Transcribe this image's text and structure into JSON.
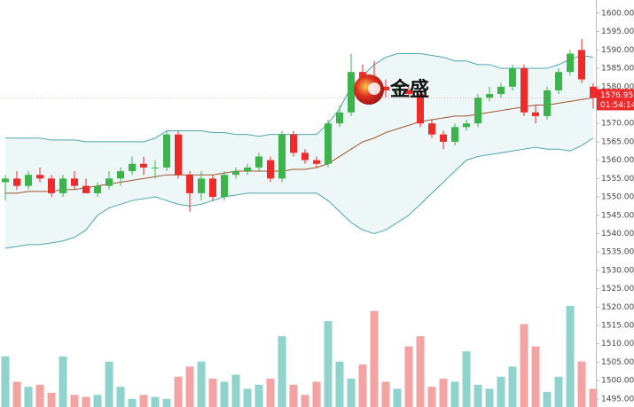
{
  "chart_data": {
    "type": "candlestick",
    "open": [
      1554,
      1555,
      1553,
      1556,
      1555,
      1551,
      1555,
      1553,
      1551,
      1553,
      1555,
      1557,
      1559,
      1558,
      1558,
      1567,
      1556,
      1551,
      1555,
      1550,
      1556,
      1557,
      1558,
      1560,
      1555,
      1567,
      1562,
      1560,
      1559,
      1570,
      1573,
      1584,
      1581,
      1580,
      1579,
      1579,
      1578,
      1570,
      1567,
      1565,
      1569,
      1570,
      1577,
      1578,
      1580,
      1585,
      1573,
      1572,
      1579,
      1584,
      1590,
      1580
    ],
    "high": [
      1556,
      1557,
      1557,
      1558,
      1556,
      1556,
      1557,
      1555,
      1554,
      1557,
      1558,
      1561,
      1561,
      1560,
      1568,
      1568,
      1557,
      1557,
      1556,
      1557,
      1558,
      1559,
      1562,
      1561,
      1568,
      1568,
      1563,
      1561,
      1571,
      1575,
      1589,
      1586,
      1587,
      1582,
      1581,
      1580,
      1579,
      1571,
      1568,
      1570,
      1571,
      1578,
      1580,
      1581,
      1586,
      1586,
      1575,
      1580,
      1585,
      1590,
      1593,
      1581
    ],
    "low": [
      1549,
      1552,
      1552,
      1554,
      1550,
      1550,
      1552,
      1551,
      1550,
      1552,
      1553,
      1556,
      1556,
      1555,
      1557,
      1555,
      1546,
      1549,
      1549,
      1549,
      1555,
      1556,
      1557,
      1554,
      1554,
      1561,
      1559,
      1558,
      1558,
      1569,
      1572,
      1580,
      1579,
      1577,
      1578,
      1577,
      1569,
      1566,
      1563,
      1564,
      1568,
      1569,
      1576,
      1577,
      1579,
      1572,
      1570,
      1571,
      1578,
      1583,
      1581,
      1574
    ],
    "close": [
      1555,
      1553,
      1556,
      1555,
      1551,
      1555,
      1553,
      1551,
      1553,
      1555,
      1557,
      1559,
      1558,
      1558,
      1567,
      1556,
      1551,
      1555,
      1550,
      1556,
      1557,
      1558,
      1561,
      1555,
      1567,
      1562,
      1560,
      1559,
      1570,
      1573,
      1584,
      1581,
      1580,
      1579,
      1579.5,
      1578,
      1570,
      1567,
      1565,
      1569,
      1570,
      1577,
      1578,
      1580,
      1585,
      1573,
      1572,
      1579,
      1584,
      1589,
      1582,
      1576.95
    ],
    "volume": [
      50,
      25,
      20,
      22,
      14,
      50,
      12,
      10,
      12,
      45,
      20,
      8,
      12,
      10,
      8,
      30,
      40,
      45,
      28,
      25,
      32,
      18,
      22,
      28,
      70,
      22,
      12,
      25,
      85,
      45,
      28,
      42,
      95,
      25,
      18,
      60,
      70,
      20,
      28,
      25,
      55,
      22,
      18,
      30,
      40,
      82,
      60,
      15,
      30,
      100,
      45,
      18
    ],
    "bands": {
      "upper": [
        1566,
        1566,
        1566,
        1566,
        1565.5,
        1565.5,
        1565.5,
        1565,
        1565,
        1565,
        1565,
        1565,
        1565,
        1566,
        1568,
        1568,
        1568,
        1568,
        1567.5,
        1567.5,
        1567,
        1567,
        1566.5,
        1567,
        1567,
        1567,
        1567,
        1567,
        1570,
        1574,
        1580,
        1583,
        1586,
        1588,
        1589,
        1589,
        1589,
        1588.5,
        1588,
        1587,
        1587,
        1586,
        1586,
        1585,
        1585,
        1585,
        1585,
        1585,
        1586,
        1587.5,
        1588.5,
        1588
      ],
      "middle": [
        1551,
        1551,
        1551.5,
        1551.5,
        1551.5,
        1552,
        1552,
        1552.5,
        1553,
        1553.5,
        1554,
        1554.5,
        1555,
        1555.5,
        1556,
        1556,
        1556,
        1556,
        1556,
        1556.5,
        1557,
        1557,
        1557,
        1557,
        1557,
        1557.5,
        1557.5,
        1558,
        1559,
        1561,
        1563,
        1565,
        1566,
        1567.5,
        1568.5,
        1569.5,
        1570.5,
        1571,
        1571.5,
        1572,
        1572,
        1572.5,
        1573,
        1573.5,
        1574,
        1574.5,
        1575,
        1575,
        1575.5,
        1576,
        1576.5,
        1577
      ],
      "lower": [
        1536,
        1536.5,
        1537,
        1537,
        1537.5,
        1538,
        1539,
        1541,
        1545,
        1547,
        1548,
        1549,
        1549.5,
        1550,
        1549,
        1548,
        1547.5,
        1548,
        1549,
        1550,
        1550.5,
        1551,
        1551,
        1551,
        1551,
        1551,
        1551,
        1551,
        1549,
        1546,
        1543,
        1541,
        1540,
        1541,
        1543,
        1545,
        1548,
        1551,
        1554,
        1557,
        1560,
        1561,
        1561.5,
        1562,
        1562.5,
        1563,
        1563.5,
        1563,
        1563,
        1562.5,
        1564,
        1566
      ]
    },
    "up_color": "#3cb44b",
    "down_color": "#ee2a2a",
    "up_volume_color": "#8fd3cc",
    "down_volume_color": "#f4a3a3",
    "band_color": "#4ea6b0",
    "middle_color": "#a0522d",
    "band_fill": "#eef7f7",
    "ylim": [
      1492.8,
      1603.6
    ],
    "yticks": [
      {
        "value": 1495,
        "label": "1495.00"
      },
      {
        "value": 1500,
        "label": "1500.00"
      },
      {
        "value": 1505,
        "label": "1505.00"
      },
      {
        "value": 1510,
        "label": "1510.00"
      },
      {
        "value": 1515,
        "label": "1515.00"
      },
      {
        "value": 1520,
        "label": "1520.00"
      },
      {
        "value": 1525,
        "label": "1525.00"
      },
      {
        "value": 1530,
        "label": "1530.00"
      },
      {
        "value": 1535,
        "label": "1535.00"
      },
      {
        "value": 1540,
        "label": "1540.00"
      },
      {
        "value": 1545,
        "label": "1545.00"
      },
      {
        "value": 1550,
        "label": "1550.00"
      },
      {
        "value": 1555,
        "label": "1555.00"
      },
      {
        "value": 1560,
        "label": "1560.00"
      },
      {
        "value": 1565,
        "label": "1565.00"
      },
      {
        "value": 1570,
        "label": "1570.00"
      },
      {
        "value": 1575,
        "label": "1575.00"
      },
      {
        "value": 1580,
        "label": "1580.00"
      },
      {
        "value": 1585,
        "label": "1585.00"
      },
      {
        "value": 1590,
        "label": "1590.00"
      },
      {
        "value": 1595,
        "label": "1595.00"
      },
      {
        "value": 1600,
        "label": "1600.00"
      }
    ],
    "last_price": 1576.95,
    "countdown": "01:54:14",
    "logo_text": "金盛"
  }
}
